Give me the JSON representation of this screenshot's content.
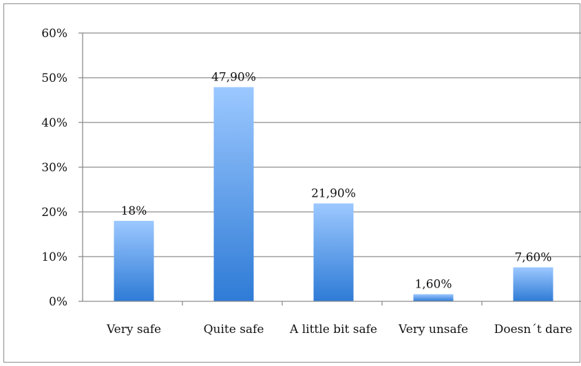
{
  "chart_data": {
    "type": "bar",
    "categories": [
      "Very safe",
      "Quite safe",
      "A little bit safe",
      "Very unsafe",
      "Doesn´t dare"
    ],
    "values": [
      18,
      47.9,
      21.9,
      1.6,
      7.6
    ],
    "data_labels": [
      "18%",
      "47,90%",
      "21,90%",
      "1,60%",
      "7,60%"
    ],
    "y_ticks": [
      0,
      10,
      20,
      30,
      40,
      50,
      60
    ],
    "y_tick_labels": [
      "0%",
      "10%",
      "20%",
      "30%",
      "40%",
      "50%",
      "60%"
    ],
    "ylim": [
      0,
      60
    ],
    "grid": true,
    "legend": "none",
    "colors": {
      "bar_top": "#9cc8ff",
      "bar_bottom": "#2e7bd6",
      "grid": "#8c8c8c",
      "axis": "#8c8c8c"
    }
  }
}
